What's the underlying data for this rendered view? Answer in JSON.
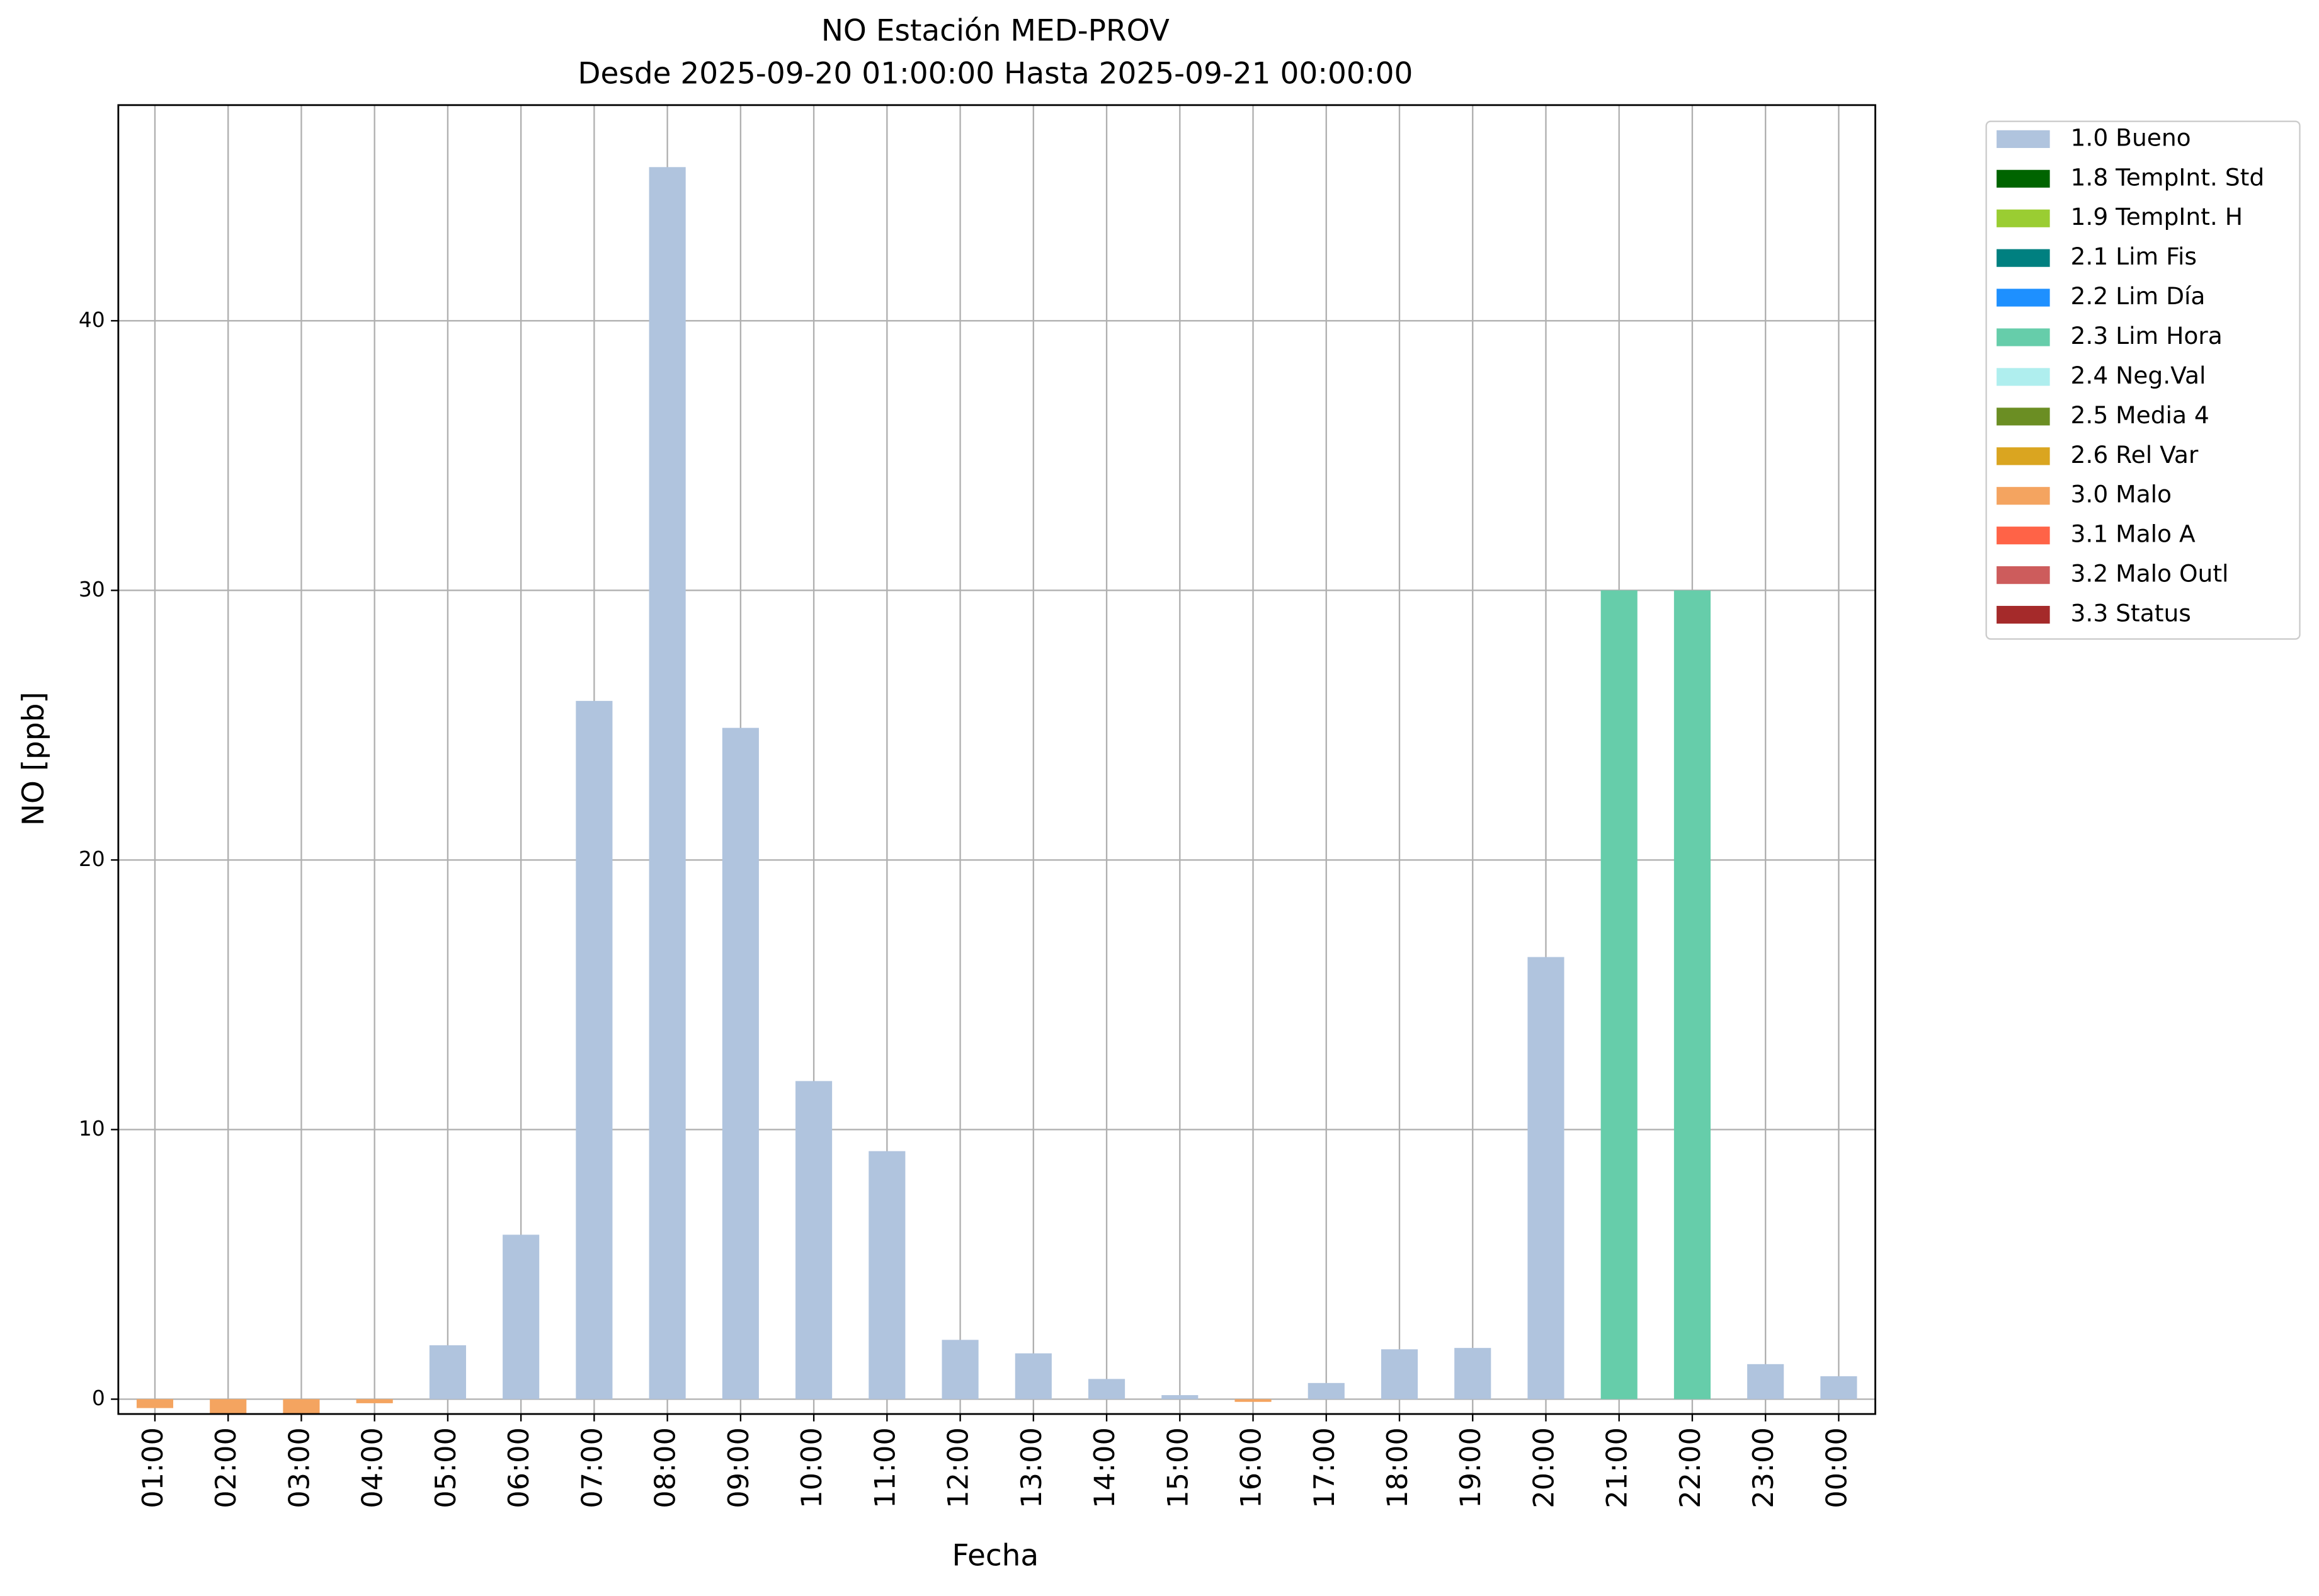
{
  "chart_data": {
    "type": "stacked_bar",
    "title": "NO Estación MED-PROV",
    "subtitle": "Desde 2025-09-20 01:00:00 Hasta 2025-09-21 00:00:00",
    "x_label": "Fecha",
    "y_label": "NO [ppb]",
    "categories": [
      "01:00",
      "02:00",
      "03:00",
      "04:00",
      "05:00",
      "06:00",
      "07:00",
      "08:00",
      "09:00",
      "10:00",
      "11:00",
      "12:00",
      "13:00",
      "14:00",
      "15:00",
      "16:00",
      "17:00",
      "18:00",
      "19:00",
      "20:00",
      "21:00",
      "22:00",
      "23:00",
      "00:00"
    ],
    "series": [
      {
        "name": "1.0 Bueno",
        "color": "#b0c4de",
        "values": [
          null,
          null,
          null,
          null,
          2.0,
          6.1,
          25.9,
          45.7,
          24.9,
          11.8,
          9.2,
          2.2,
          1.7,
          0.75,
          0.15,
          null,
          0.6,
          1.85,
          1.9,
          16.4,
          null,
          null,
          1.3,
          0.85
        ]
      },
      {
        "name": "1.8 TempInt. Std",
        "color": "#006400",
        "values": [
          null,
          null,
          null,
          null,
          null,
          null,
          null,
          null,
          null,
          null,
          null,
          null,
          null,
          null,
          null,
          null,
          null,
          null,
          null,
          null,
          null,
          null,
          null,
          null
        ]
      },
      {
        "name": "1.9 TempInt. H",
        "color": "#9acd32",
        "values": [
          null,
          null,
          null,
          null,
          null,
          null,
          null,
          null,
          null,
          null,
          null,
          null,
          null,
          null,
          null,
          null,
          null,
          null,
          null,
          null,
          null,
          null,
          null,
          null
        ]
      },
      {
        "name": "2.1 Lim Fis",
        "color": "#008080",
        "values": [
          null,
          null,
          null,
          null,
          null,
          null,
          null,
          null,
          null,
          null,
          null,
          null,
          null,
          null,
          null,
          null,
          null,
          null,
          null,
          null,
          null,
          null,
          null,
          null
        ]
      },
      {
        "name": "2.2 Lim Día",
        "color": "#1e90ff",
        "values": [
          null,
          null,
          null,
          null,
          null,
          null,
          null,
          null,
          null,
          null,
          null,
          null,
          null,
          null,
          null,
          null,
          null,
          null,
          null,
          null,
          null,
          null,
          null,
          null
        ]
      },
      {
        "name": "2.3 Lim Hora",
        "color": "#66cdaa",
        "values": [
          null,
          null,
          null,
          null,
          null,
          null,
          null,
          null,
          null,
          null,
          null,
          null,
          null,
          null,
          null,
          null,
          null,
          null,
          null,
          null,
          30,
          30,
          null,
          null
        ]
      },
      {
        "name": "2.4 Neg.Val",
        "color": "#afeeee",
        "values": [
          null,
          null,
          null,
          null,
          null,
          null,
          null,
          null,
          null,
          null,
          null,
          null,
          null,
          null,
          null,
          null,
          null,
          null,
          null,
          null,
          null,
          null,
          null,
          null
        ]
      },
      {
        "name": "2.5 Media 4",
        "color": "#6b8e23",
        "values": [
          null,
          null,
          null,
          null,
          null,
          null,
          null,
          null,
          null,
          null,
          null,
          null,
          null,
          null,
          null,
          null,
          null,
          null,
          null,
          null,
          null,
          null,
          null,
          null
        ]
      },
      {
        "name": "2.6 Rel Var",
        "color": "#daa520",
        "values": [
          null,
          null,
          null,
          null,
          null,
          null,
          null,
          null,
          null,
          null,
          null,
          null,
          null,
          null,
          null,
          null,
          null,
          null,
          null,
          null,
          null,
          null,
          null,
          null
        ]
      },
      {
        "name": "3.0 Malo",
        "color": "#f4a460",
        "values": [
          -0.33,
          -0.55,
          -0.55,
          -0.15,
          null,
          null,
          null,
          null,
          null,
          null,
          null,
          null,
          null,
          null,
          null,
          -0.1,
          null,
          null,
          null,
          null,
          null,
          null,
          null,
          null
        ]
      },
      {
        "name": "3.1 Malo A",
        "color": "#ff6347",
        "values": [
          null,
          null,
          null,
          null,
          null,
          null,
          null,
          null,
          null,
          null,
          null,
          null,
          null,
          null,
          null,
          null,
          null,
          null,
          null,
          null,
          null,
          null,
          null,
          null
        ]
      },
      {
        "name": "3.2 Malo Outl",
        "color": "#cd5c5c",
        "values": [
          null,
          null,
          null,
          null,
          null,
          null,
          null,
          null,
          null,
          null,
          null,
          null,
          null,
          null,
          null,
          null,
          null,
          null,
          null,
          null,
          null,
          null,
          null,
          null
        ]
      },
      {
        "name": "3.3 Status",
        "color": "#a52a2a",
        "values": [
          null,
          null,
          null,
          null,
          null,
          null,
          null,
          null,
          null,
          null,
          null,
          null,
          null,
          null,
          null,
          null,
          null,
          null,
          null,
          null,
          null,
          null,
          null,
          null
        ]
      }
    ],
    "ylim": [
      -0.55,
      48
    ],
    "yticks": [
      0,
      10,
      20,
      30,
      40
    ],
    "grid": true
  }
}
